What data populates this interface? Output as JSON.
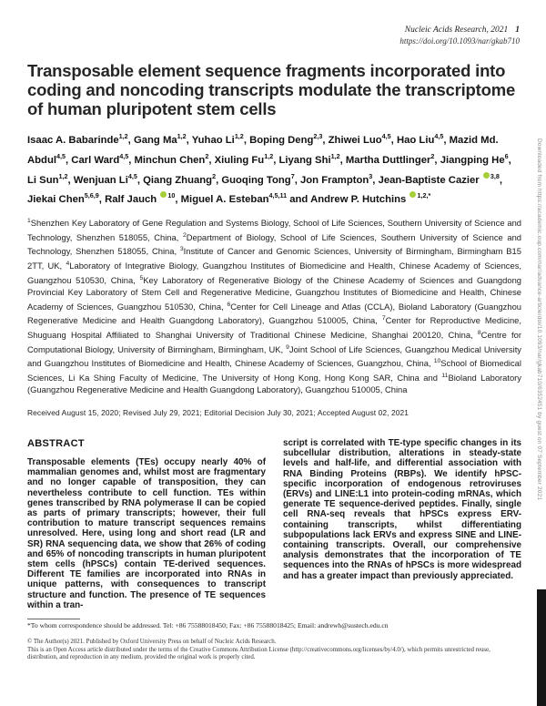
{
  "header": {
    "journal": "Nucleic Acids Research, 2021",
    "page_number": "1",
    "doi": "https://doi.org/10.1093/nar/gkab710"
  },
  "article": {
    "title": "Transposable element sequence fragments incorporated into coding and noncoding transcripts modulate the transcriptome of human pluripotent stem cells",
    "authors": [
      {
        "name": "Isaac A. Babarinde",
        "sup": "1,2",
        "orcid": false,
        "after": ", "
      },
      {
        "name": "Gang Ma",
        "sup": "1,2",
        "orcid": false,
        "after": ", "
      },
      {
        "name": "Yuhao Li",
        "sup": "1,2",
        "orcid": false,
        "after": ", "
      },
      {
        "name": "Boping Deng",
        "sup": "2,3",
        "orcid": false,
        "after": ", "
      },
      {
        "name": "Zhiwei Luo",
        "sup": "4,5",
        "orcid": false,
        "after": ", "
      },
      {
        "name": "Hao Liu",
        "sup": "4,5",
        "orcid": false,
        "after": ", "
      },
      {
        "name": "Mazid Md. Abdul",
        "sup": "4,5",
        "orcid": false,
        "after": ", "
      },
      {
        "name": "Carl Ward",
        "sup": "4,5",
        "orcid": false,
        "after": ", "
      },
      {
        "name": "Minchun Chen",
        "sup": "2",
        "orcid": false,
        "after": ", "
      },
      {
        "name": "Xiuling Fu",
        "sup": "1,2",
        "orcid": false,
        "after": ", "
      },
      {
        "name": "Liyang Shi",
        "sup": "1,2",
        "orcid": false,
        "after": ", "
      },
      {
        "name": "Martha Duttlinger",
        "sup": "2",
        "orcid": false,
        "after": ", "
      },
      {
        "name": "Jiangping He",
        "sup": "6",
        "orcid": false,
        "after": ", "
      },
      {
        "name": "Li Sun",
        "sup": "1,2",
        "orcid": false,
        "after": ", "
      },
      {
        "name": "Wenjuan Li",
        "sup": "4,5",
        "orcid": false,
        "after": ", "
      },
      {
        "name": "Qiang Zhuang",
        "sup": "2",
        "orcid": false,
        "after": ", "
      },
      {
        "name": "Guoqing Tong",
        "sup": "7",
        "orcid": false,
        "after": ", "
      },
      {
        "name": "Jon Frampton",
        "sup": "3",
        "orcid": false,
        "after": ", "
      },
      {
        "name": "Jean-Baptiste Cazier",
        "sup": "3,8",
        "orcid": true,
        "after": ", "
      },
      {
        "name": "Jiekai Chen",
        "sup": "5,6,9",
        "orcid": false,
        "after": ", "
      },
      {
        "name": "Ralf Jauch",
        "sup": "10",
        "orcid": true,
        "after": ", "
      },
      {
        "name": "Miguel A. Esteban",
        "sup": "4,5,11",
        "orcid": false,
        "after": "  and "
      },
      {
        "name": "Andrew P. Hutchins",
        "sup": "1,2,*",
        "orcid": true,
        "after": ""
      }
    ],
    "affiliations": [
      {
        "sup": "1",
        "text": "Shenzhen Key Laboratory of Gene Regulation and Systems Biology, School of Life Sciences, Southern University of Science and Technology, Shenzhen 518055, China, "
      },
      {
        "sup": "2",
        "text": "Department of Biology, School of Life Sciences, Southern University of Science and Technology, Shenzhen 518055, China, "
      },
      {
        "sup": "3",
        "text": "Institute of Cancer and Genomic Sciences, University of Birmingham, Birmingham B15 2TT, UK, "
      },
      {
        "sup": "4",
        "text": "Laboratory of Integrative Biology, Guangzhou Institutes of Biomedicine and Health, Chinese Academy of Sciences, Guangzhou 510530, China, "
      },
      {
        "sup": "5",
        "text": "Key Laboratory of Regenerative Biology of the Chinese Academy of Sciences and Guangdong Provincial Key Laboratory of Stem Cell and Regenerative Medicine, Guangzhou Institutes of Biomedicine and Health, Chinese Academy of Sciences, Guangzhou 510530, China, "
      },
      {
        "sup": "6",
        "text": "Center for Cell Lineage and Atlas (CCLA), Bioland Laboratory (Guangzhou Regenerative Medicine and Health Guangdong Laboratory), Guangzhou 510005, China, "
      },
      {
        "sup": "7",
        "text": "Center for Reproductive Medicine, Shuguang Hospital Affiliated to Shanghai University of Traditional Chinese Medicine, Shanghai 200120, China, "
      },
      {
        "sup": "8",
        "text": "Centre for Computational Biology, University of Birmingham, Birmingham, UK, "
      },
      {
        "sup": "9",
        "text": "Joint School of Life Sciences, Guangzhou Medical University and Guangzhou Institutes of Biomedicine and Health, Chinese Academy of Sciences, Guangzhou, China, "
      },
      {
        "sup": "10",
        "text": "School of Biomedical Sciences, Li Ka Shing Faculty of Medicine, The University of Hong Kong, Hong Kong SAR, China and "
      },
      {
        "sup": "11",
        "text": "Bioland Laboratory (Guangzhou Regenerative Medicine and Health Guangdong Laboratory), Guangzhou 510005, China"
      }
    ],
    "history": "Received August 15, 2020; Revised July 29, 2021; Editorial Decision July 30, 2021; Accepted August 02, 2021"
  },
  "abstract": {
    "heading": "ABSTRACT",
    "column_left": "Transposable elements (TEs) occupy nearly 40% of mammalian genomes and, whilst most are fragmentary and no longer capable of transposition, they can nevertheless contribute to cell function. TEs within genes transcribed by RNA polymerase II can be copied as parts of primary transcripts; however, their full contribution to mature transcript sequences remains unresolved. Here, using long and short read (LR and SR) RNA sequencing data, we show that 26% of coding and 65% of noncoding transcripts in human pluripotent stem cells (hPSCs) contain TE-derived sequences. Different TE families are incorporated into RNAs in unique patterns, with consequences to transcript structure and function. The presence of TE sequences within a tran-",
    "column_right": "script is correlated with TE-type specific changes in its subcellular distribution, alterations in steady-state levels and half-life, and differential association with RNA Binding Proteins (RBPs). We identify hPSC-specific incorporation of endogenous retroviruses (ERVs) and LINE:L1 into protein-coding mRNAs, which generate TE sequence-derived peptides. Finally, single cell RNA-seq reveals that hPSCs express ERV-containing transcripts, whilst differentiating subpopulations lack ERVs and express SINE and LINE-containing transcripts. Overall, our comprehensive analysis demonstrates that the incorporation of TE sequences into the RNAs of hPSCs is more widespread and has a greater impact than previously appreciated."
  },
  "footnotes": {
    "correspondence": "*To whom correspondence should be addressed. Tel: +86 75588018450; Fax: +86 75588018425; Email: andrewh@sustech.edu.cn",
    "copyright": "© The Author(s) 2021. Published by Oxford University Press on behalf of Nucleic Acids Research.",
    "license": "This is an Open Access article distributed under the terms of the Creative Commons Attribution License (http://creativecommons.org/licenses/by/4.0/), which permits unrestricted reuse, distribution, and reproduction in any medium, provided the original work is properly cited."
  },
  "watermark": {
    "text": "Downloaded from https://academic.oup.com/nar/advance-article/doi/10.1093/nar/gkab710/6352451 by guest on 07 September 2021"
  },
  "icons": {
    "orcid": "orcid-icon"
  },
  "colors": {
    "orcid_green": "#A6CE39",
    "scrollbar": "#161616"
  }
}
